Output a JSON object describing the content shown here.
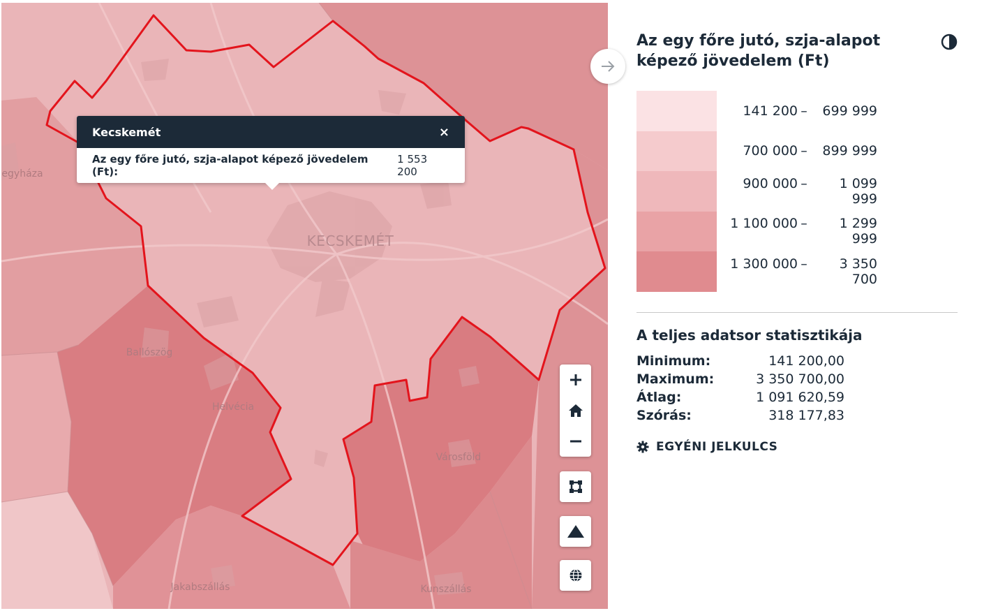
{
  "map": {
    "places": {
      "center_city": "KECSKEMÉT",
      "egyhaza": "egyháza",
      "ballosog": "Ballószög",
      "helvecia": "Helvécia",
      "varosfold": "Városföld",
      "jakabszallas": "Jakabszállás",
      "kunszallas": "Kunszállás"
    },
    "boundary_color": "#e3141c",
    "popup": {
      "title": "Kecskemét",
      "close": "×",
      "field_label": "Az egy főre jutó, szja-alapot képező jövedelem (Ft):",
      "field_value": "1 553 200"
    },
    "controls": [
      "zoom-in",
      "home",
      "zoom-out",
      "fit-bounds",
      "terrain",
      "globe"
    ]
  },
  "panel": {
    "title": "Az egy főre jutó, szja-alapot képező jövedelem (Ft)",
    "legend": [
      {
        "from": "141 200",
        "to": "699 999",
        "color": "#fbe2e4"
      },
      {
        "from": "700 000",
        "to": "899 999",
        "color": "#f5cbcd"
      },
      {
        "from": "900 000",
        "to": "1 099 999",
        "color": "#efb8bb"
      },
      {
        "from": "1 100 000",
        "to": "1 299 999",
        "color": "#e9a3a6"
      },
      {
        "from": "1 300 000",
        "to": "3 350 700",
        "color": "#e08b8f"
      }
    ],
    "dash": "–",
    "stats_title": "A teljes adatsor statisztikája",
    "stats": [
      {
        "label": "Minimum:",
        "value": "141 200,00"
      },
      {
        "label": "Maximum:",
        "value": "3 350 700,00"
      },
      {
        "label": "Átlag:",
        "value": "1 091 620,59"
      },
      {
        "label": "Szórás:",
        "value": "318 177,83"
      }
    ],
    "custom_key": "EGYÉNI JELKULCS"
  }
}
